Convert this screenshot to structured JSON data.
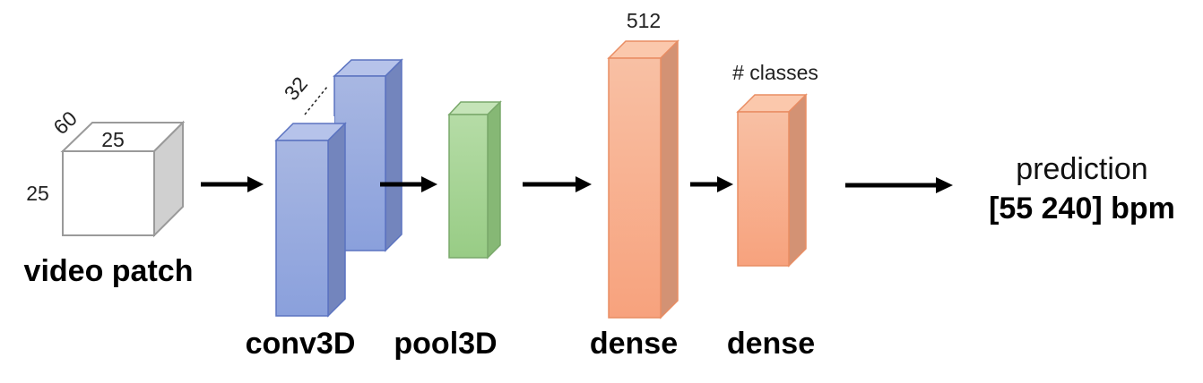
{
  "input": {
    "label": "video patch",
    "dim_depth": "60",
    "dim_width": "25",
    "dim_height": "25"
  },
  "layers": [
    {
      "label": "conv3D",
      "annotation": "32"
    },
    {
      "label": "pool3D",
      "annotation": ""
    },
    {
      "label": "dense",
      "annotation": "512"
    },
    {
      "label": "dense",
      "annotation": "# classes"
    }
  ],
  "output": {
    "title": "prediction",
    "value": "[55 240] bpm"
  },
  "colors": {
    "conv_front": "#97a9dc",
    "conv_side": "#7385bd",
    "conv_top": "#b6c3ea",
    "conv_stroke": "#5b73c0",
    "pool_front": "#a7d497",
    "pool_side": "#86b875",
    "pool_top": "#c5e4b8",
    "pool_stroke": "#79a86a",
    "dense_front": "#f8ae8e",
    "dense_side": "#d39274",
    "dense_top": "#fbc8ac",
    "dense_stroke": "#e98d63",
    "cube_side": "#d0d0d0",
    "cube_stroke": "#9a9a9a",
    "arrow": "#000000"
  }
}
